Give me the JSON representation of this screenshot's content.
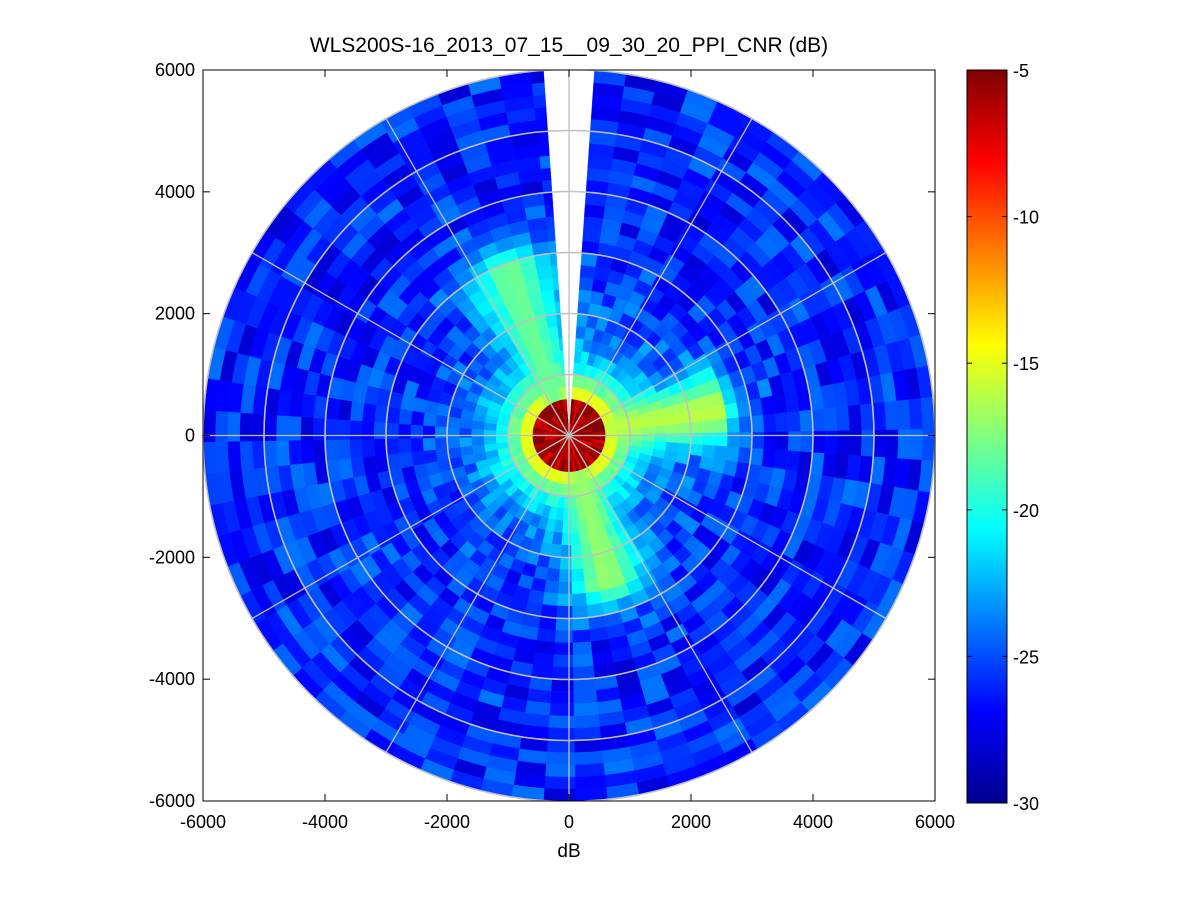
{
  "chart_data": {
    "type": "heatmap",
    "subtype": "polar PPI scan",
    "title": "WLS200S-16_2013_07_15__09_30_20_PPI_CNR (dB)",
    "xlabel": "dB",
    "ylabel": "",
    "xlim": [
      -6000,
      6000
    ],
    "ylim": [
      -6000,
      6000
    ],
    "x_ticks": [
      -6000,
      -4000,
      -2000,
      0,
      2000,
      4000,
      6000
    ],
    "x_tick_labels": [
      "-6000",
      "-4000",
      "-2000",
      "0",
      "2000",
      "4000",
      "6000"
    ],
    "y_ticks": [
      6000,
      4000,
      2000,
      0,
      -2000,
      -4000,
      -6000
    ],
    "y_tick_labels": [
      "6000",
      "4000",
      "2000",
      "0",
      "-2000",
      "-4000",
      "-6000"
    ],
    "max_range": 6000,
    "range_rings": [
      1000,
      2000,
      3000,
      4000,
      5000,
      6000
    ],
    "spokes_deg_step": 30,
    "no_data_sector_azimuth_deg": [
      -4,
      4
    ],
    "grid": true,
    "colormap": "jet",
    "colorbar": {
      "min": -30,
      "max": -5,
      "ticks": [
        -5,
        -10,
        -15,
        -20,
        -25,
        -30
      ],
      "tick_labels": [
        "-5",
        "-10",
        "-15",
        "-20",
        "-25",
        "-30"
      ],
      "position": "right"
    },
    "cnr_features_db": [
      {
        "feature": "background",
        "range_m": [
          1500,
          6000
        ],
        "cnr_db": -26
      },
      {
        "feature": "near-field core",
        "range_m": [
          0,
          700
        ],
        "cnr_db": -6
      },
      {
        "feature": "plume toward azimuth 80",
        "range_m": [
          700,
          2500
        ],
        "cnr_db": -16
      },
      {
        "feature": "plume toward azimuth 165",
        "range_m": [
          700,
          2600
        ],
        "cnr_db": -17
      },
      {
        "feature": "plume toward azimuth 340",
        "range_m": [
          700,
          3000
        ],
        "cnr_db": -18
      }
    ]
  }
}
